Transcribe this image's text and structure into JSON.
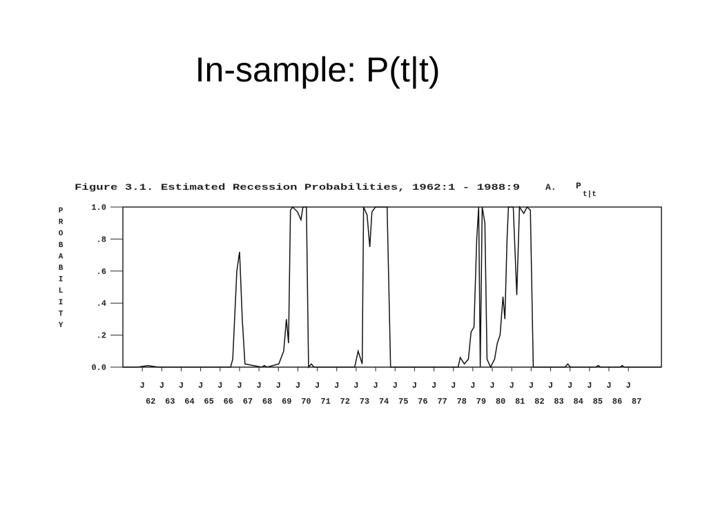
{
  "slide_title": "In-sample: P(t|t)",
  "chart_data": {
    "type": "line",
    "title": "Figure 3.1.  Estimated Recession Probabilities, 1962:1 - 1988:9",
    "annotation": "A.",
    "annotation_symbol": "P",
    "annotation_subscript": "t|t",
    "y_label": "PROBABILITY",
    "color": "#111111",
    "x": [
      1961.0,
      1961.75,
      1962.28,
      1962.82,
      1966.54,
      1966.65,
      1966.86,
      1967.0,
      1967.14,
      1967.28,
      1968.13,
      1968.28,
      1968.42,
      1969.02,
      1969.27,
      1969.41,
      1969.52,
      1969.62,
      1969.73,
      1969.98,
      1970.16,
      1970.26,
      1970.44,
      1970.55,
      1970.69,
      1970.83,
      1972.92,
      1973.1,
      1973.31,
      1973.38,
      1973.56,
      1973.7,
      1973.81,
      1973.99,
      1974.59,
      1974.77,
      1978.24,
      1978.35,
      1978.56,
      1978.77,
      1978.91,
      1979.06,
      1979.2,
      1979.3,
      1979.38,
      1979.48,
      1979.62,
      1979.73,
      1979.91,
      1980.12,
      1980.26,
      1980.4,
      1980.55,
      1980.65,
      1980.76,
      1980.83,
      1981.08,
      1981.26,
      1981.4,
      1981.62,
      1981.79,
      1981.96,
      1982.11,
      1983.74,
      1983.88,
      1984.02,
      1985.33,
      1985.44,
      1985.58,
      1986.57,
      1986.68,
      1986.79,
      1988.67
    ],
    "values": [
      0,
      0,
      0.01,
      0,
      0,
      0.05,
      0.6,
      0.72,
      0.3,
      0.02,
      0,
      0.01,
      0,
      0.02,
      0.1,
      0.3,
      0.15,
      0.98,
      1,
      0.97,
      0.92,
      1,
      1,
      0,
      0.02,
      0,
      0,
      0.1,
      0.02,
      1,
      0.95,
      0.75,
      0.97,
      1,
      1,
      0,
      0,
      0.06,
      0.02,
      0.05,
      0.22,
      0.25,
      0.8,
      1,
      0,
      1,
      0.9,
      0.05,
      0,
      0.05,
      0.15,
      0.2,
      0.44,
      0.3,
      0.8,
      1,
      1,
      0.45,
      1,
      0.96,
      1,
      0.98,
      0,
      0,
      0.02,
      0,
      0,
      0.01,
      0,
      0,
      0.01,
      0,
      0
    ],
    "xlim": [
      1961.0,
      1988.7
    ],
    "ylim": [
      0,
      1
    ],
    "yticks": [
      {
        "value": 0,
        "label": "0.0"
      },
      {
        "value": 0.2,
        "label": ".2"
      },
      {
        "value": 0.4,
        "label": ".4"
      },
      {
        "value": 0.6,
        "label": ".6"
      },
      {
        "value": 0.8,
        "label": ".8"
      },
      {
        "value": 1,
        "label": "1.0"
      }
    ],
    "xtick_month": "J",
    "xticks": [
      {
        "value": 1962,
        "label": "62"
      },
      {
        "value": 1963,
        "label": "63"
      },
      {
        "value": 1964,
        "label": "64"
      },
      {
        "value": 1965,
        "label": "65"
      },
      {
        "value": 1966,
        "label": "66"
      },
      {
        "value": 1967,
        "label": "67"
      },
      {
        "value": 1968,
        "label": "68"
      },
      {
        "value": 1969,
        "label": "69"
      },
      {
        "value": 1970,
        "label": "70"
      },
      {
        "value": 1971,
        "label": "71"
      },
      {
        "value": 1972,
        "label": "72"
      },
      {
        "value": 1973,
        "label": "73"
      },
      {
        "value": 1974,
        "label": "74"
      },
      {
        "value": 1975,
        "label": "75"
      },
      {
        "value": 1976,
        "label": "76"
      },
      {
        "value": 1977,
        "label": "77"
      },
      {
        "value": 1978,
        "label": "78"
      },
      {
        "value": 1979,
        "label": "79"
      },
      {
        "value": 1980,
        "label": "80"
      },
      {
        "value": 1981,
        "label": "81"
      },
      {
        "value": 1982,
        "label": "82"
      },
      {
        "value": 1983,
        "label": "83"
      },
      {
        "value": 1984,
        "label": "84"
      },
      {
        "value": 1985,
        "label": "85"
      },
      {
        "value": 1986,
        "label": "86"
      },
      {
        "value": 1987,
        "label": "87"
      }
    ]
  }
}
